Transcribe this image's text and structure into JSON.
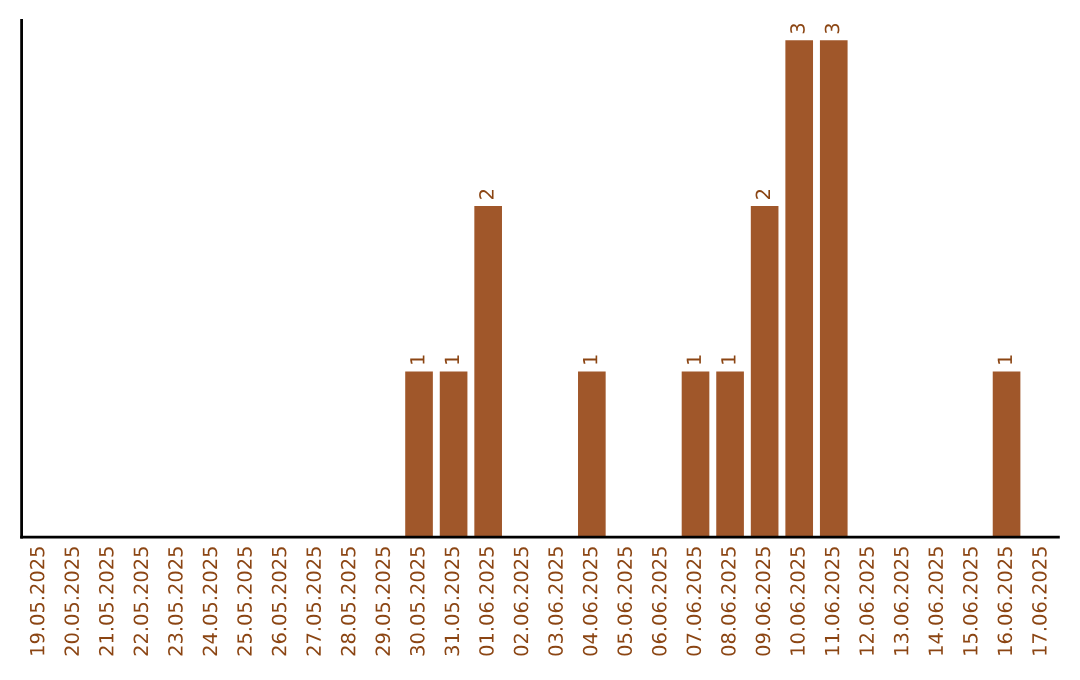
{
  "chart_data": {
    "type": "bar",
    "categories": [
      "19.05.2025",
      "20.05.2025",
      "21.05.2025",
      "22.05.2025",
      "23.05.2025",
      "24.05.2025",
      "25.05.2025",
      "26.05.2025",
      "27.05.2025",
      "28.05.2025",
      "29.05.2025",
      "30.05.2025",
      "31.05.2025",
      "01.06.2025",
      "02.06.2025",
      "03.06.2025",
      "04.06.2025",
      "05.06.2025",
      "06.06.2025",
      "07.06.2025",
      "08.06.2025",
      "09.06.2025",
      "10.06.2025",
      "11.06.2025",
      "12.06.2025",
      "13.06.2025",
      "14.06.2025",
      "15.06.2025",
      "16.06.2025",
      "17.06.2025"
    ],
    "values": [
      0,
      0,
      0,
      0,
      0,
      0,
      0,
      0,
      0,
      0,
      0,
      1,
      1,
      2,
      0,
      0,
      1,
      0,
      0,
      1,
      1,
      2,
      3,
      3,
      0,
      0,
      0,
      0,
      1,
      0
    ],
    "value_labels": [
      null,
      null,
      null,
      null,
      null,
      null,
      null,
      null,
      null,
      null,
      null,
      "1",
      "1",
      "2",
      null,
      null,
      "1",
      null,
      null,
      "1",
      "1",
      "2",
      "3",
      "3",
      null,
      null,
      null,
      null,
      "1",
      null
    ],
    "color": "#a0572a",
    "tick_labels": "x",
    "grid": false,
    "legend": false
  }
}
